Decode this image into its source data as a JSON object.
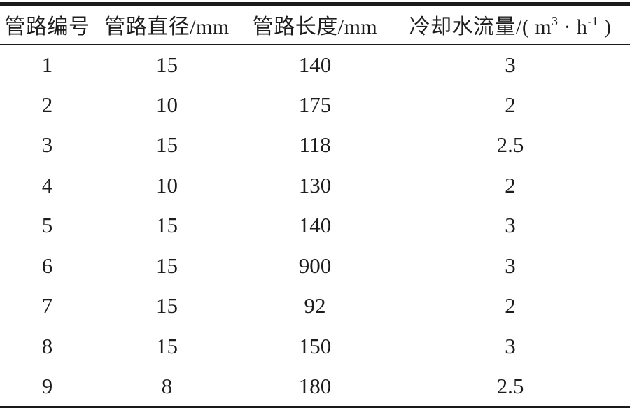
{
  "page": {
    "background_color": "#ffffff",
    "text_color": "#1d1d1d",
    "rule_color": "#1a1a1a"
  },
  "table": {
    "headers": [
      {
        "label": "管路编号"
      },
      {
        "label": "管路直径/mm"
      },
      {
        "label": "管路长度/mm"
      },
      {
        "p1": "冷却水流量/( m",
        "sup1": "3",
        "p2": " · h",
        "sup2": "-1",
        "p3": " )"
      }
    ],
    "rows": [
      [
        "1",
        "15",
        "140",
        "3"
      ],
      [
        "2",
        "10",
        "175",
        "2"
      ],
      [
        "3",
        "15",
        "118",
        "2.5"
      ],
      [
        "4",
        "10",
        "130",
        "2"
      ],
      [
        "5",
        "15",
        "140",
        "3"
      ],
      [
        "6",
        "15",
        "900",
        "3"
      ],
      [
        "7",
        "15",
        "92",
        "2"
      ],
      [
        "8",
        "15",
        "150",
        "3"
      ],
      [
        "9",
        "8",
        "180",
        "2.5"
      ]
    ]
  },
  "chart_data": {
    "type": "table",
    "columns": [
      "管路编号",
      "管路直径/mm",
      "管路长度/mm",
      "冷却水流量/(m3·h-1)"
    ],
    "rows": [
      [
        1,
        15,
        140,
        3
      ],
      [
        2,
        10,
        175,
        2
      ],
      [
        3,
        15,
        118,
        2.5
      ],
      [
        4,
        10,
        130,
        2
      ],
      [
        5,
        15,
        140,
        3
      ],
      [
        6,
        15,
        900,
        3
      ],
      [
        7,
        15,
        92,
        2
      ],
      [
        8,
        15,
        150,
        3
      ],
      [
        9,
        8,
        180,
        2.5
      ]
    ]
  }
}
